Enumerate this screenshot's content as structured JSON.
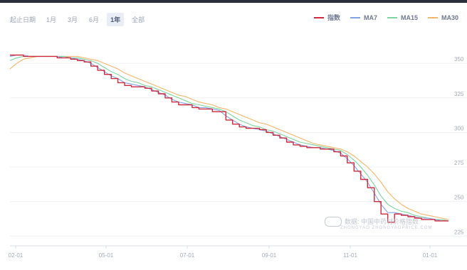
{
  "toolbar": {
    "label": "起止日期",
    "ranges": [
      "1月",
      "3月",
      "6月",
      "1年",
      "全部"
    ],
    "active_index": 3
  },
  "legend": [
    {
      "name": "指数",
      "color": "#d0283c"
    },
    {
      "name": "MA7",
      "color": "#7fa4e6"
    },
    {
      "name": "MA15",
      "color": "#7ed3a0"
    },
    {
      "name": "MA30",
      "color": "#f4b56a"
    }
  ],
  "watermark": {
    "main": "数据: 中国中药材价格指数",
    "sub": "ZHONGYAO  ZHONGYAOPRICE.COM"
  },
  "chart_data": {
    "type": "line",
    "title": "",
    "xlabel": "",
    "ylabel": "",
    "x_ticks": [
      "02-01",
      "05-01",
      "07-01",
      "09-01",
      "11-01",
      "01-01"
    ],
    "y_ticks": [
      225,
      250,
      275,
      300,
      325,
      350
    ],
    "ylim": [
      220,
      365
    ],
    "grid": "horizontal",
    "legend_position": "top-right",
    "series": [
      {
        "name": "指数",
        "color": "#d0283c",
        "values": [
          356,
          356,
          355,
          355,
          355,
          355,
          355,
          354,
          354,
          353,
          352,
          351,
          348,
          345,
          342,
          339,
          336,
          334,
          333,
          333,
          332,
          330,
          328,
          325,
          322,
          320,
          320,
          318,
          317,
          317,
          315,
          315,
          309,
          306,
          304,
          303,
          303,
          302,
          300,
          298,
          296,
          293,
          291,
          290,
          289,
          289,
          288,
          288,
          286,
          283,
          278,
          272,
          266,
          260,
          250,
          241,
          235,
          241,
          240,
          239,
          238,
          237,
          237,
          236,
          236,
          236
        ]
      },
      {
        "name": "MA7",
        "color": "#7fa4e6",
        "values": [
          355,
          356,
          356,
          355,
          355,
          355,
          355,
          355,
          354,
          354,
          353,
          352,
          350,
          347,
          344,
          341,
          339,
          336,
          335,
          334,
          333,
          331,
          329,
          327,
          324,
          322,
          321,
          320,
          318,
          318,
          317,
          316,
          312,
          309,
          306,
          304,
          303,
          302,
          301,
          299,
          297,
          295,
          293,
          291,
          290,
          289,
          289,
          288,
          287,
          285,
          281,
          276,
          270,
          264,
          256,
          248,
          242,
          242,
          241,
          240,
          239,
          238,
          238,
          237,
          236,
          236
        ]
      },
      {
        "name": "MA15",
        "color": "#7ed3a0",
        "values": [
          352,
          354,
          355,
          355,
          355,
          355,
          355,
          355,
          355,
          354,
          354,
          353,
          352,
          350,
          347,
          344,
          342,
          339,
          337,
          336,
          334,
          333,
          331,
          329,
          327,
          325,
          323,
          321,
          320,
          319,
          318,
          317,
          315,
          312,
          309,
          307,
          305,
          304,
          302,
          301,
          299,
          297,
          295,
          293,
          292,
          291,
          290,
          289,
          288,
          287,
          284,
          280,
          275,
          269,
          262,
          254,
          248,
          245,
          243,
          242,
          240,
          239,
          238,
          237,
          237,
          236
        ]
      },
      {
        "name": "MA30",
        "color": "#f4b56a",
        "values": [
          346,
          350,
          353,
          354,
          355,
          355,
          355,
          355,
          355,
          355,
          355,
          354,
          353,
          352,
          350,
          348,
          346,
          343,
          341,
          339,
          337,
          335,
          333,
          331,
          329,
          327,
          326,
          324,
          322,
          321,
          320,
          318,
          317,
          315,
          313,
          311,
          309,
          307,
          306,
          304,
          302,
          300,
          298,
          296,
          294,
          292,
          291,
          290,
          289,
          288,
          286,
          283,
          279,
          275,
          270,
          264,
          257,
          252,
          248,
          245,
          243,
          241,
          240,
          239,
          238,
          237
        ]
      }
    ]
  }
}
